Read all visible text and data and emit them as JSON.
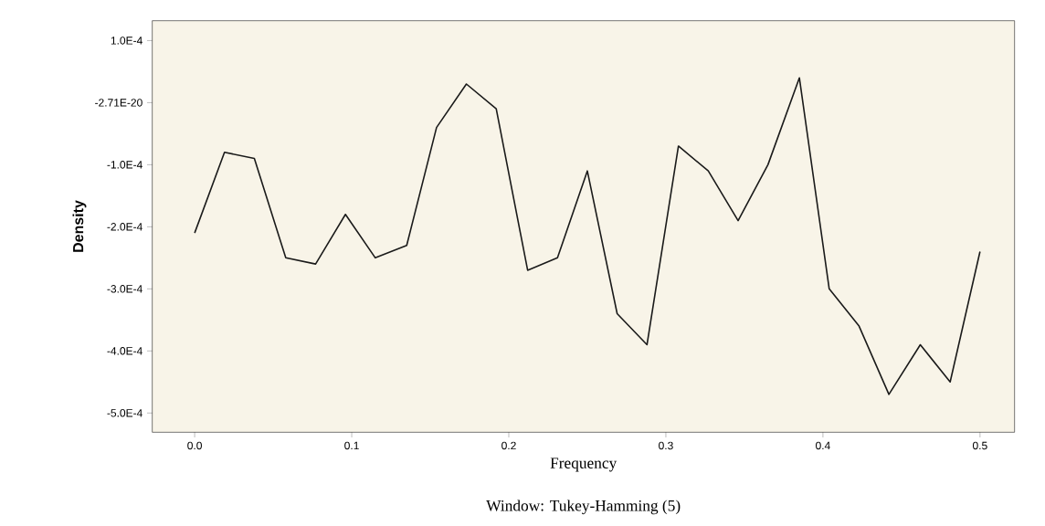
{
  "chart_data": {
    "type": "line",
    "xlabel": "Frequency",
    "ylabel": "Density",
    "annotations": [
      "Window: Tukey-Hamming (5)"
    ],
    "x": [
      0.0,
      0.019,
      0.038,
      0.058,
      0.077,
      0.096,
      0.115,
      0.135,
      0.154,
      0.173,
      0.192,
      0.212,
      0.231,
      0.25,
      0.269,
      0.288,
      0.308,
      0.327,
      0.346,
      0.365,
      0.385,
      0.404,
      0.423,
      0.442,
      0.462,
      0.481,
      0.5
    ],
    "series": [
      {
        "color": "#1a1a1a",
        "values": [
          -0.00021,
          -8e-05,
          -9e-05,
          -0.00025,
          -0.00026,
          -0.00018,
          -0.00025,
          -0.00023,
          -4e-05,
          3e-05,
          -1e-05,
          -0.00027,
          -0.00025,
          -0.00011,
          -0.00034,
          -0.00039,
          -7e-05,
          -0.00011,
          -0.00019,
          -0.0001,
          4e-05,
          -0.0003,
          -0.00036,
          -0.00047,
          -0.00039,
          -0.00045,
          -0.00024
        ]
      }
    ],
    "xlim": [
      -0.027,
      0.522
    ],
    "ylim": [
      -0.000531,
      0.000132
    ],
    "xticks": [
      {
        "value": 0,
        "label": "0.0"
      },
      0.1,
      0.2,
      0.3,
      0.4,
      0.5
    ],
    "yticks": [
      {
        "value": 0.0001,
        "label": "1.0E-4"
      },
      {
        "value": -2.71e-20,
        "label": "-2.71E-20"
      },
      {
        "value": -0.0001,
        "label": "-1.0E-4"
      },
      {
        "value": -0.0002,
        "label": "-2.0E-4"
      },
      {
        "value": -0.0003,
        "label": "-3.0E-4"
      },
      {
        "value": -0.0004,
        "label": "-4.0E-4"
      },
      {
        "value": -0.0005,
        "label": "-5.0E-4"
      }
    ],
    "grid": false,
    "marker": "none",
    "line_style": "solid"
  }
}
